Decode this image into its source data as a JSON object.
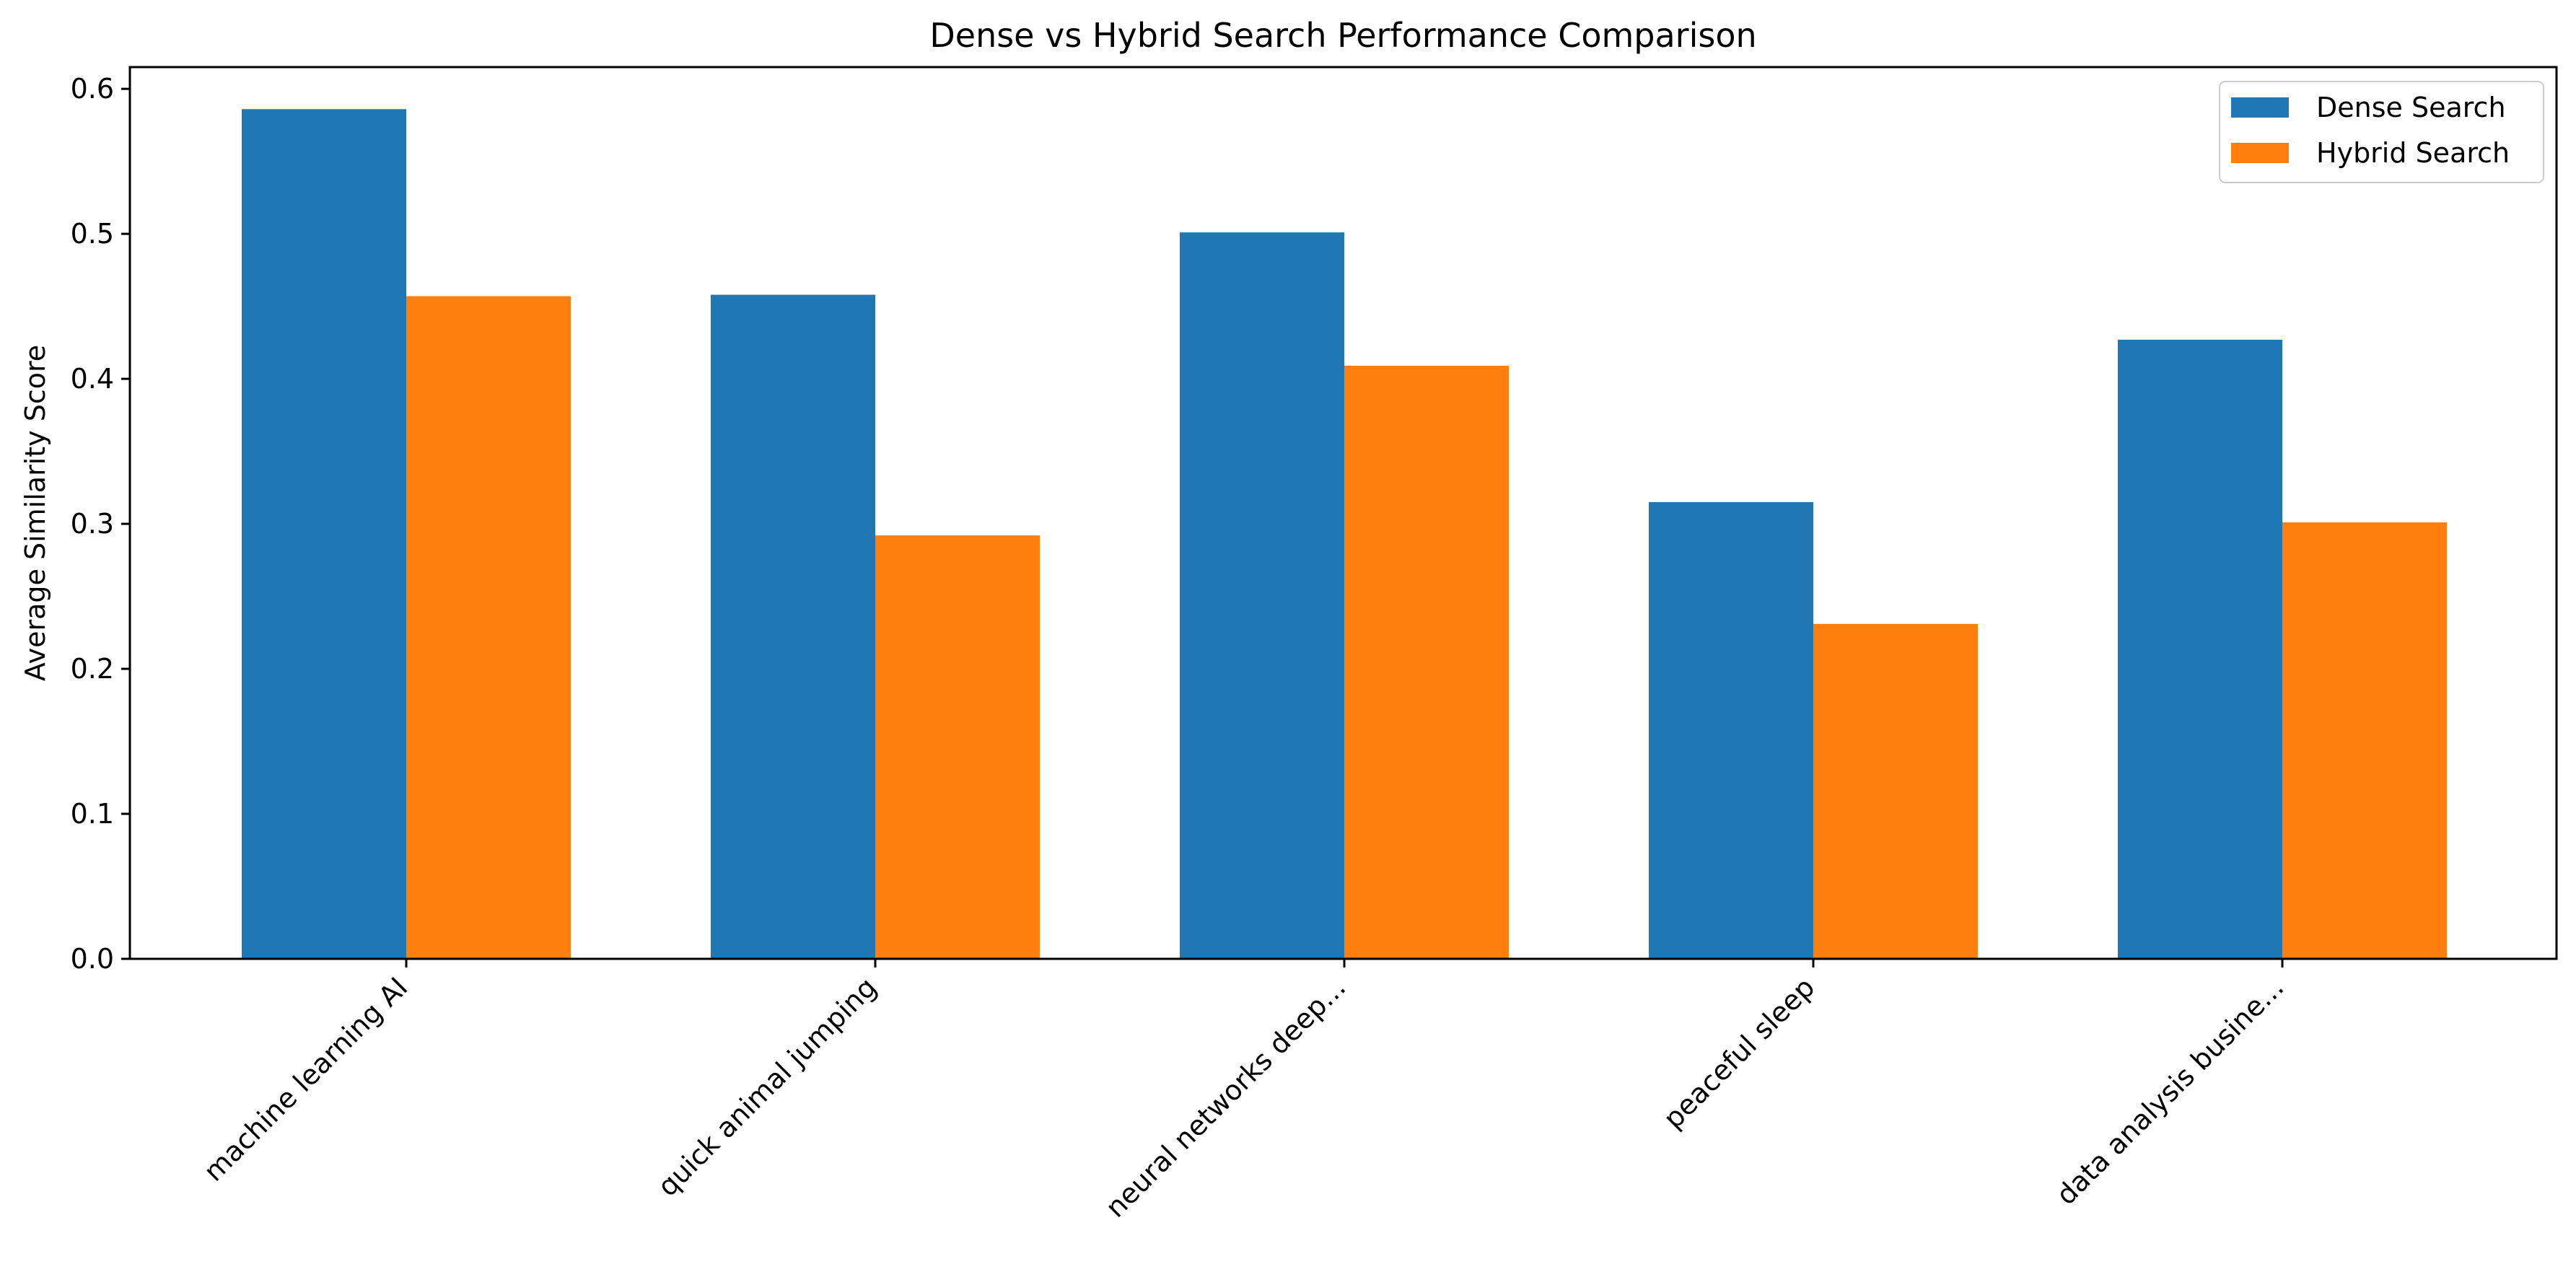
{
  "chart_data": {
    "type": "bar",
    "title": "Dense vs Hybrid Search Performance Comparison",
    "xlabel": "",
    "ylabel": "Average Similarity Score",
    "categories": [
      "machine learning AI",
      "quick animal jumping",
      "neural networks deep...",
      "peaceful sleep",
      "data analysis busine..."
    ],
    "series": [
      {
        "name": "Dense Search",
        "color": "#1f77b4",
        "values": [
          0.586,
          0.458,
          0.501,
          0.315,
          0.427
        ]
      },
      {
        "name": "Hybrid Search",
        "color": "#ff7f0e",
        "values": [
          0.457,
          0.292,
          0.409,
          0.231,
          0.301
        ]
      }
    ],
    "ylim": [
      0,
      0.615
    ],
    "yticks": [
      "0.0",
      "0.1",
      "0.2",
      "0.3",
      "0.4",
      "0.5",
      "0.6"
    ],
    "grid": false,
    "legend_position": "top-right",
    "xtick_rotation_deg": -45
  }
}
